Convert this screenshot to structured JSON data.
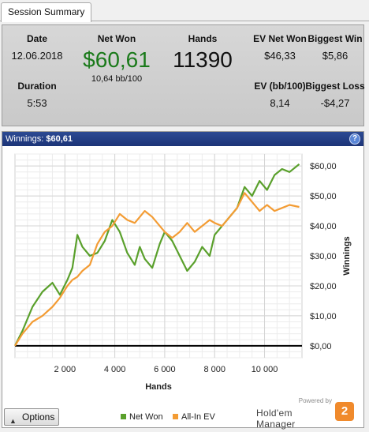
{
  "tab": {
    "label": "Session Summary"
  },
  "summary": {
    "date_label": "Date",
    "date_value": "12.06.2018",
    "duration_label": "Duration",
    "duration_value": "5:53",
    "netwon_label": "Net Won",
    "netwon_value": "$60,61",
    "netwon_bb": "10,64 bb/100",
    "hands_label": "Hands",
    "hands_value": "11390",
    "ev_netwon_label": "EV Net Won",
    "ev_netwon_value": "$46,33",
    "ev_bb_label": "EV (bb/100)",
    "ev_bb_value": "8,14",
    "biggest_win_label": "Biggest Win",
    "biggest_win_value": "$5,86",
    "biggest_loss_label": "Biggest Loss",
    "biggest_loss_value": "-$4,27"
  },
  "chart_panel": {
    "header_label": "Winnings:",
    "header_value": "$60,61",
    "help_icon": "?"
  },
  "chart_data": {
    "type": "line",
    "xlabel": "Hands",
    "ylabel": "Winnings",
    "xlim": [
      0,
      11500
    ],
    "ylim": [
      -4,
      64
    ],
    "x_ticks": [
      2000,
      4000,
      6000,
      8000,
      10000
    ],
    "x_tick_labels": [
      "2 000",
      "4 000",
      "6 000",
      "8 000",
      "10 000"
    ],
    "y_ticks": [
      0,
      10,
      20,
      30,
      40,
      50,
      60
    ],
    "y_tick_labels": [
      "$0,00",
      "$10,00",
      "$20,00",
      "$30,00",
      "$40,00",
      "$50,00",
      "$60,00"
    ],
    "grid": true,
    "legend_position": "bottom",
    "series": [
      {
        "name": "Net Won",
        "color": "#5aa02c",
        "x": [
          0,
          300,
          700,
          1100,
          1500,
          1800,
          2100,
          2300,
          2500,
          2700,
          3000,
          3300,
          3600,
          3900,
          4200,
          4500,
          4800,
          5000,
          5200,
          5500,
          5800,
          6000,
          6300,
          6600,
          6900,
          7200,
          7500,
          7800,
          8000,
          8300,
          8600,
          8900,
          9200,
          9500,
          9800,
          10100,
          10400,
          10700,
          11000,
          11390
        ],
        "values": [
          0,
          5,
          13,
          18,
          21,
          17,
          22,
          26,
          37,
          33,
          30,
          31,
          35,
          42,
          38,
          31,
          27,
          33,
          29,
          26,
          34,
          38,
          35,
          30,
          25,
          28,
          33,
          30,
          37,
          40,
          43,
          46,
          53,
          50,
          55,
          52,
          57,
          59,
          58,
          60.61
        ]
      },
      {
        "name": "All-In EV",
        "color": "#f39c34",
        "x": [
          0,
          300,
          700,
          1100,
          1500,
          1800,
          2100,
          2300,
          2500,
          2700,
          3000,
          3300,
          3600,
          3900,
          4200,
          4500,
          4800,
          5000,
          5200,
          5500,
          5800,
          6000,
          6300,
          6600,
          6900,
          7200,
          7500,
          7800,
          8000,
          8300,
          8600,
          8900,
          9200,
          9500,
          9800,
          10100,
          10400,
          10700,
          11000,
          11390
        ],
        "values": [
          0,
          4,
          8,
          10,
          13,
          16,
          20,
          22,
          23,
          25,
          27,
          34,
          38,
          40,
          44,
          42,
          41,
          43,
          45,
          43,
          40,
          38,
          36,
          38,
          41,
          38,
          40,
          42,
          41,
          40,
          43,
          46,
          51,
          48,
          45,
          47,
          45,
          46,
          47,
          46.33
        ]
      }
    ]
  },
  "footer": {
    "options_label": "Options",
    "legend_net_won": "Net Won",
    "legend_all_in_ev": "All-In EV",
    "powered_by": "Powered by",
    "brand_name": "Hold'em Manager",
    "brand_logo": "2"
  }
}
